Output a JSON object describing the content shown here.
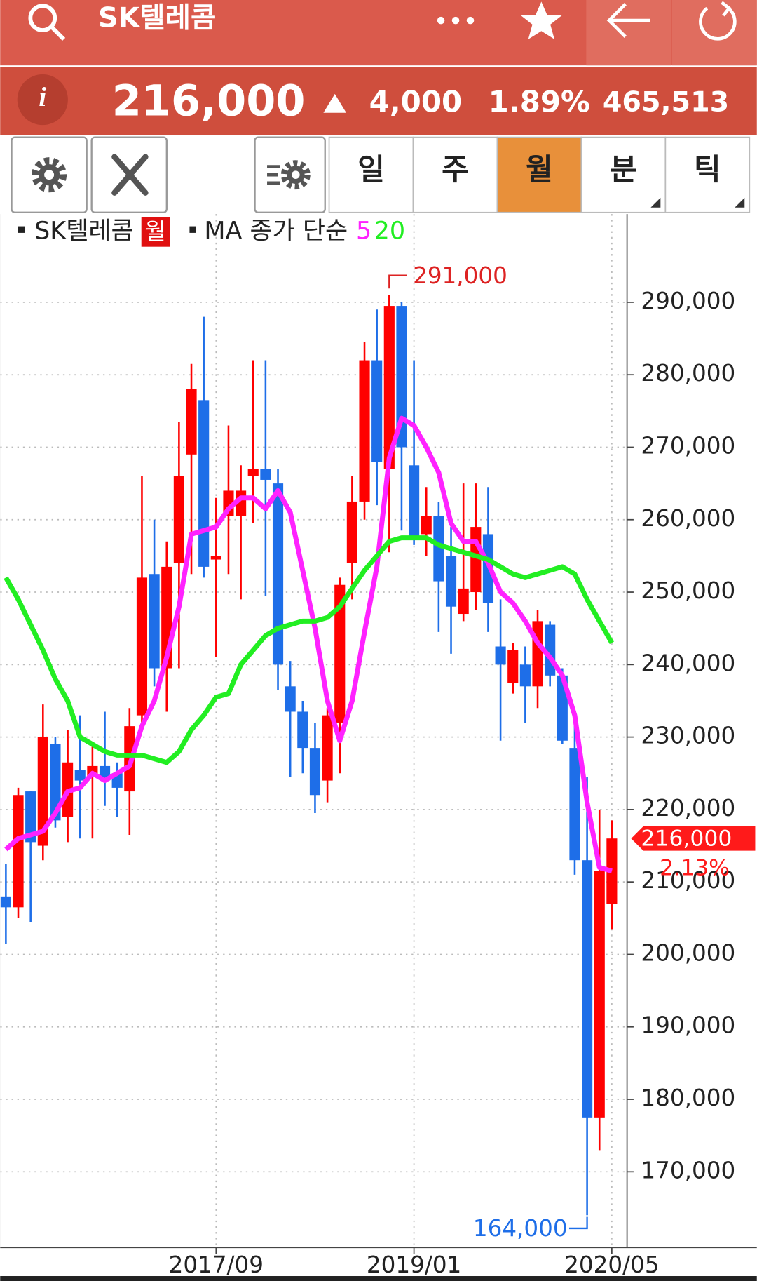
{
  "header": {
    "title": "SK텔레콤"
  },
  "quote": {
    "price": "216,000",
    "change": "4,000",
    "change_pct": "1.89%",
    "volume": "465,513"
  },
  "tabs": [
    "일",
    "주",
    "월",
    "분",
    "틱"
  ],
  "chart_data": {
    "type": "candlestick",
    "period": "월",
    "ma_label": "MA 종가 단순",
    "categories": [
      null,
      null,
      null,
      null,
      null,
      null,
      null,
      null,
      null,
      null,
      null,
      null,
      null,
      null,
      null,
      null,
      null,
      "2017/09",
      null,
      null,
      null,
      null,
      null,
      null,
      null,
      null,
      null,
      null,
      null,
      null,
      null,
      null,
      null,
      "2019/01",
      null,
      null,
      null,
      null,
      null,
      null,
      null,
      null,
      null,
      null,
      null,
      null,
      null,
      null,
      null,
      "2020/05"
    ],
    "series": [
      {
        "name": "SK텔레콤",
        "up_color": "#ff0000",
        "down_color": "#1e6ee8",
        "open": [
          208000,
          206500,
          222500,
          215000,
          229000,
          219000,
          225500,
          224500,
          226000,
          225000,
          222500,
          233000,
          252500,
          239500,
          254000,
          269000,
          276500,
          254500,
          260500,
          260500,
          266000,
          267000,
          265000,
          237000,
          233500,
          228500,
          224000,
          232000,
          254000,
          262500,
          282000,
          267000,
          289500,
          267500,
          258000,
          260500,
          255000,
          247000,
          250000,
          258000,
          242500,
          237500,
          240000,
          237000,
          245500,
          238500,
          228500,
          213000,
          177500,
          207000
        ],
        "high": [
          212500,
          223000,
          222500,
          234500,
          230000,
          231000,
          233000,
          229000,
          233500,
          226500,
          234000,
          266000,
          260000,
          257000,
          273500,
          281500,
          288000,
          263000,
          273000,
          267500,
          282000,
          282000,
          267000,
          240500,
          235000,
          232000,
          234000,
          252000,
          266000,
          284500,
          289000,
          291000,
          290000,
          282000,
          264500,
          262500,
          259000,
          265000,
          265000,
          264500,
          249000,
          243000,
          242500,
          247500,
          246000,
          239500,
          233000,
          224500,
          220000,
          218500
        ],
        "low": [
          201500,
          205000,
          204500,
          213000,
          217500,
          215500,
          216000,
          216000,
          220500,
          219000,
          216500,
          231000,
          237000,
          233500,
          239500,
          252500,
          252000,
          241000,
          252500,
          249000,
          259500,
          249500,
          236500,
          224500,
          225000,
          219500,
          221000,
          225000,
          249000,
          260000,
          262000,
          255500,
          258500,
          256500,
          255000,
          244500,
          241500,
          246000,
          247500,
          244500,
          229500,
          236000,
          232000,
          234000,
          237000,
          229000,
          211000,
          164000,
          173000,
          203500
        ],
        "close": [
          206500,
          222000,
          215500,
          230000,
          218500,
          226500,
          224000,
          226000,
          224000,
          223000,
          231500,
          252000,
          239500,
          253500,
          266000,
          278000,
          253500,
          255000,
          264000,
          264000,
          267000,
          265500,
          240000,
          233500,
          228500,
          222000,
          233000,
          251000,
          262500,
          282000,
          268000,
          289500,
          270000,
          257500,
          260500,
          251500,
          248000,
          250500,
          259000,
          248500,
          240000,
          242000,
          237000,
          246000,
          238500,
          229500,
          213000,
          177500,
          211500,
          216000
        ]
      },
      {
        "name": "5",
        "color": "#ff22ff",
        "values": [
          214500,
          216000,
          216500,
          217000,
          219500,
          222500,
          223000,
          225000,
          224000,
          225000,
          226000,
          231500,
          235000,
          241000,
          248000,
          258000,
          258500,
          259000,
          261500,
          263000,
          263000,
          261500,
          264000,
          261000,
          253000,
          245000,
          235000,
          229500,
          235000,
          244500,
          253500,
          268500,
          274000,
          273000,
          270000,
          266500,
          259500,
          257000,
          257000,
          254000,
          250000,
          248500,
          246000,
          243000,
          241000,
          238500,
          233000,
          221000,
          212000,
          211500
        ]
      },
      {
        "name": "20",
        "color": "#22ee22",
        "values": [
          252000,
          249000,
          245500,
          242000,
          238000,
          235000,
          230000,
          229000,
          228000,
          227500,
          227500,
          227500,
          227000,
          226500,
          228000,
          231000,
          233000,
          235500,
          236000,
          240000,
          242000,
          244000,
          245000,
          245500,
          246000,
          246000,
          246500,
          248000,
          250500,
          253000,
          255000,
          257000,
          257500,
          257500,
          257500,
          256500,
          256000,
          255500,
          255000,
          254500,
          253500,
          252500,
          252000,
          252500,
          253000,
          253500,
          252500,
          249000,
          246000,
          243000
        ]
      }
    ],
    "ylim": [
      160000,
      302000
    ],
    "yticks": [
      {
        "value": 170000,
        "label": "170,000"
      },
      {
        "value": 180000,
        "label": "180,000"
      },
      {
        "value": 190000,
        "label": "190,000"
      },
      {
        "value": 200000,
        "label": "200,000"
      },
      {
        "value": 210000,
        "label": "210,000"
      },
      {
        "value": 220000,
        "label": "220,000"
      },
      {
        "value": 230000,
        "label": "230,000"
      },
      {
        "value": 240000,
        "label": "240,000"
      },
      {
        "value": 250000,
        "label": "250,000"
      },
      {
        "value": 260000,
        "label": "260,000"
      },
      {
        "value": 270000,
        "label": "270,000"
      },
      {
        "value": 280000,
        "label": "280,000"
      },
      {
        "value": 290000,
        "label": "290,000"
      }
    ],
    "grid": true,
    "annotations": {
      "high_label": "291,000",
      "low_label": "164,000",
      "last_label": "216,000",
      "last_change": "2.13%"
    }
  }
}
